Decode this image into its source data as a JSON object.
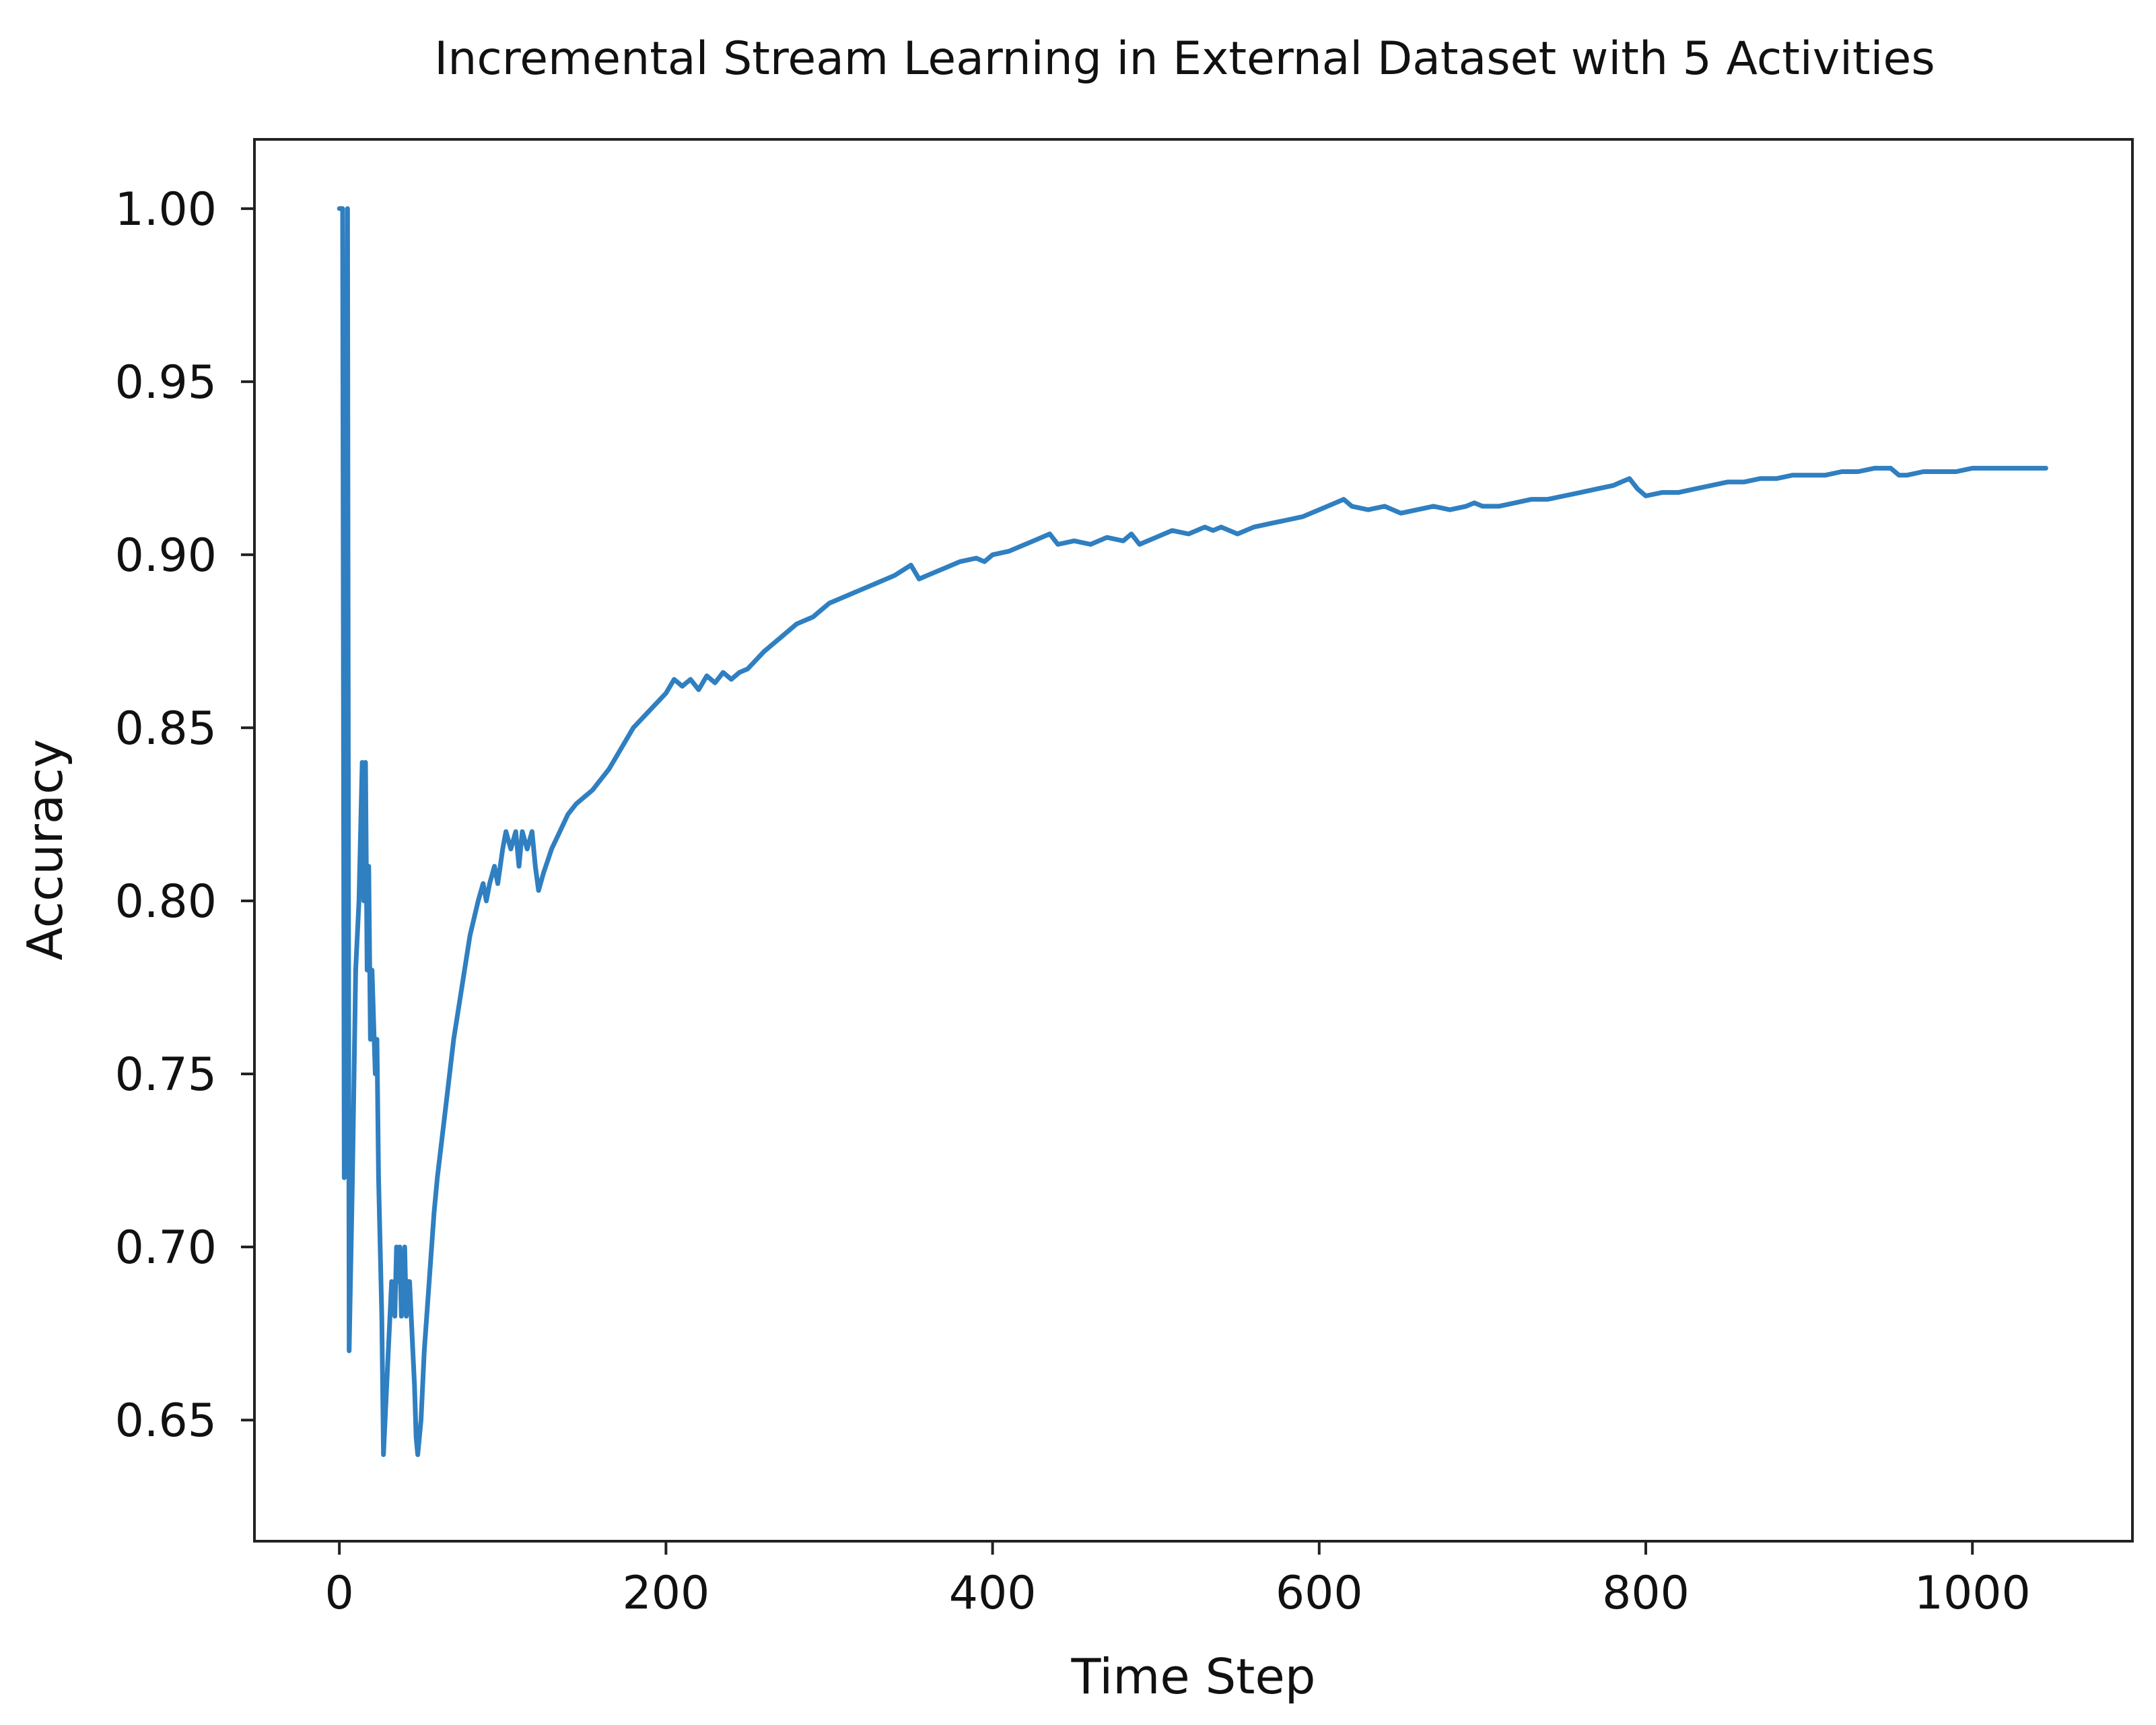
{
  "chart_data": {
    "type": "line",
    "title": "Incremental Stream Learning in External Dataset with 5 Activities",
    "xlabel": "Time Step",
    "ylabel": "Accuracy",
    "xlim": [
      -52,
      1098
    ],
    "ylim": [
      0.615,
      1.02
    ],
    "xticks": [
      0,
      200,
      400,
      600,
      800,
      1000
    ],
    "yticks": [
      0.65,
      0.7,
      0.75,
      0.8,
      0.85,
      0.9,
      0.95,
      1.0
    ],
    "xtick_labels": [
      "0",
      "200",
      "400",
      "600",
      "800",
      "1000"
    ],
    "ytick_labels": [
      "0.65",
      "0.70",
      "0.75",
      "0.80",
      "0.85",
      "0.90",
      "0.95",
      "1.00"
    ],
    "grid": false,
    "legend": "none",
    "line_color": "#2f7fc1",
    "series": [
      {
        "x": [
          0,
          2,
          3,
          4,
          5,
          6,
          8,
          10,
          12,
          14,
          15,
          16,
          17,
          18,
          19,
          20,
          22,
          23,
          24,
          26,
          27,
          28,
          30,
          32,
          34,
          35,
          36,
          37,
          38,
          39,
          40,
          41,
          42,
          43,
          44,
          45,
          46,
          47,
          48,
          50,
          52,
          55,
          58,
          60,
          65,
          70,
          75,
          80,
          85,
          88,
          90,
          92,
          95,
          97,
          100,
          102,
          105,
          108,
          110,
          112,
          115,
          118,
          120,
          122,
          125,
          130,
          135,
          140,
          145,
          150,
          155,
          160,
          165,
          170,
          180,
          190,
          200,
          205,
          210,
          215,
          220,
          225,
          230,
          235,
          240,
          245,
          250,
          260,
          270,
          280,
          290,
          295,
          300,
          310,
          320,
          330,
          340,
          350,
          355,
          360,
          370,
          380,
          390,
          395,
          400,
          410,
          420,
          430,
          435,
          440,
          450,
          460,
          470,
          480,
          485,
          490,
          500,
          510,
          520,
          530,
          535,
          540,
          550,
          560,
          570,
          580,
          590,
          600,
          610,
          615,
          620,
          630,
          640,
          650,
          660,
          670,
          680,
          690,
          695,
          700,
          710,
          720,
          730,
          740,
          750,
          760,
          770,
          780,
          785,
          790,
          795,
          800,
          810,
          820,
          830,
          840,
          850,
          860,
          870,
          880,
          890,
          900,
          910,
          920,
          930,
          940,
          950,
          955,
          960,
          970,
          980,
          990,
          1000,
          1010,
          1020,
          1030,
          1040,
          1045
        ],
        "y": [
          1.0,
          1.0,
          0.72,
          0.75,
          1.0,
          0.67,
          0.72,
          0.78,
          0.8,
          0.84,
          0.8,
          0.84,
          0.78,
          0.81,
          0.76,
          0.78,
          0.75,
          0.76,
          0.72,
          0.68,
          0.64,
          0.65,
          0.67,
          0.69,
          0.68,
          0.7,
          0.69,
          0.7,
          0.68,
          0.69,
          0.7,
          0.68,
          0.69,
          0.69,
          0.68,
          0.67,
          0.66,
          0.645,
          0.64,
          0.65,
          0.67,
          0.69,
          0.71,
          0.72,
          0.74,
          0.76,
          0.775,
          0.79,
          0.8,
          0.805,
          0.8,
          0.805,
          0.81,
          0.805,
          0.815,
          0.82,
          0.815,
          0.82,
          0.81,
          0.82,
          0.815,
          0.82,
          0.81,
          0.803,
          0.808,
          0.815,
          0.82,
          0.825,
          0.828,
          0.83,
          0.832,
          0.835,
          0.838,
          0.842,
          0.85,
          0.855,
          0.86,
          0.864,
          0.862,
          0.864,
          0.861,
          0.865,
          0.863,
          0.866,
          0.864,
          0.866,
          0.867,
          0.872,
          0.876,
          0.88,
          0.882,
          0.884,
          0.886,
          0.888,
          0.89,
          0.892,
          0.894,
          0.897,
          0.893,
          0.894,
          0.896,
          0.898,
          0.899,
          0.898,
          0.9,
          0.901,
          0.903,
          0.905,
          0.906,
          0.903,
          0.904,
          0.903,
          0.905,
          0.904,
          0.906,
          0.903,
          0.905,
          0.907,
          0.906,
          0.908,
          0.907,
          0.908,
          0.906,
          0.908,
          0.909,
          0.91,
          0.911,
          0.913,
          0.915,
          0.916,
          0.914,
          0.913,
          0.914,
          0.912,
          0.913,
          0.914,
          0.913,
          0.914,
          0.915,
          0.914,
          0.914,
          0.915,
          0.916,
          0.916,
          0.917,
          0.918,
          0.919,
          0.92,
          0.921,
          0.922,
          0.919,
          0.917,
          0.918,
          0.918,
          0.919,
          0.92,
          0.921,
          0.921,
          0.922,
          0.922,
          0.923,
          0.923,
          0.923,
          0.924,
          0.924,
          0.925,
          0.925,
          0.923,
          0.923,
          0.924,
          0.924,
          0.924,
          0.925,
          0.925,
          0.925,
          0.925,
          0.925,
          0.925
        ]
      }
    ]
  }
}
